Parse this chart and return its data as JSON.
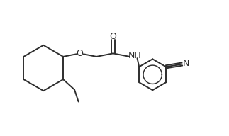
{
  "bg_color": "#ffffff",
  "line_color": "#2d2d2d",
  "line_width": 1.4,
  "font_size": 8.5,
  "fig_width": 3.23,
  "fig_height": 1.92,
  "dpi": 100,
  "xlim": [
    0.0,
    8.5
  ],
  "ylim": [
    0.5,
    5.5
  ]
}
